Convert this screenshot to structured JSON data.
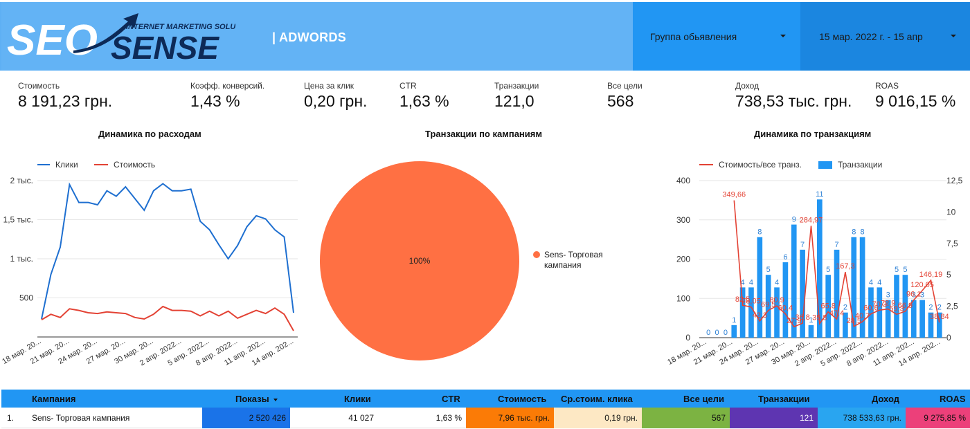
{
  "header": {
    "logo_text_seo": "SEO",
    "logo_text_sense": "SENSE",
    "logo_tagline": "INTERNET MARKETING SOLUTIONS",
    "title": "| ADWORDS",
    "filter_group_label": "Группа обьявления",
    "filter_date_label": "15 мар. 2022 г. - 15 апр"
  },
  "kpis": [
    {
      "label": "Стоимость",
      "value": "8 191,23 грн."
    },
    {
      "label": "Коэфф. конверсий.",
      "value": "1,43 %"
    },
    {
      "label": "Цена за клик",
      "value": "0,20 грн."
    },
    {
      "label": "CTR",
      "value": "1,63 %"
    },
    {
      "label": "Транзакции",
      "value": "121,0"
    },
    {
      "label": "Все цели",
      "value": "568"
    },
    {
      "label": "Доход",
      "value": "738,53 тыс. грн."
    },
    {
      "label": "ROAS",
      "value": "9 016,15 %"
    }
  ],
  "colors": {
    "blue_line": "#1e6fd0",
    "red_line": "#e34234",
    "pie": "#ff7043",
    "bar": "#2196f3"
  },
  "chart_data": [
    {
      "type": "line",
      "title": "Динамика по расходам",
      "legend_position": "top-left",
      "grid": true,
      "ylim": [
        0,
        2000
      ],
      "yticks": [
        "500",
        "1 тыс.",
        "1,5 тыс.",
        "2 тыс."
      ],
      "xtick_labels": [
        "18 мар. 20...",
        "21 мар. 20...",
        "24 мар. 20...",
        "27 мар. 20...",
        "30 мар. 20...",
        "2 апр. 2022...",
        "5 апр. 2022...",
        "8 апр. 2022...",
        "11 апр. 202...",
        "14 апр. 202..."
      ],
      "series": [
        {
          "name": "Клики",
          "values": [
            230,
            800,
            1150,
            1950,
            1720,
            1720,
            1690,
            1870,
            1800,
            1920,
            1770,
            1620,
            1870,
            1960,
            1870,
            1870,
            1890,
            1480,
            1370,
            1180,
            1000,
            1170,
            1410,
            1550,
            1510,
            1370,
            1280,
            310
          ]
        },
        {
          "name": "Стоимость",
          "values": [
            220,
            290,
            250,
            360,
            340,
            310,
            300,
            320,
            310,
            300,
            250,
            230,
            290,
            390,
            340,
            340,
            330,
            270,
            330,
            270,
            330,
            240,
            290,
            340,
            300,
            370,
            290,
            80
          ]
        }
      ]
    },
    {
      "type": "pie",
      "title": "Транзакции по кампаниям",
      "legend_position": "right",
      "slices": [
        {
          "name": "Sens- Торговая кампания",
          "percent": 100,
          "label": "100%"
        }
      ]
    },
    {
      "type": "bar",
      "title": "Динамика по транзакциям",
      "legend_position": "top-left",
      "grid": true,
      "ylim_left": [
        0,
        400
      ],
      "ylim_right": [
        0,
        12.5
      ],
      "yticks_left": [
        "0",
        "100",
        "200",
        "300",
        "400"
      ],
      "yticks_right": [
        "0",
        "2,5",
        "5",
        "7,5",
        "10",
        "12,5"
      ],
      "xtick_labels": [
        "18 мар. 20...",
        "21 мар. 20...",
        "24 мар. 20...",
        "27 мар. 20...",
        "30 мар. 20...",
        "2 апр. 2022...",
        "5 апр. 2022...",
        "8 апр. 2022...",
        "11 апр. 202...",
        "14 апр. 202..."
      ],
      "series": [
        {
          "name": "Транзакции",
          "values": [
            0,
            0,
            0,
            1,
            4,
            4,
            8,
            5,
            4,
            6,
            9,
            7,
            1,
            11,
            5,
            7,
            2,
            8,
            8,
            4,
            4,
            3,
            5,
            5,
            3,
            3,
            2,
            2
          ],
          "labels": [
            "0",
            "0",
            "0",
            "1",
            "4",
            "4",
            "8",
            "5",
            "4",
            "6",
            "9",
            "7",
            "1",
            "11",
            "5",
            "7",
            "2",
            "8",
            "8",
            "4",
            "4",
            "3",
            "5",
            "5",
            "3",
            "3",
            "2",
            "2"
          ]
        },
        {
          "name": "Стоимость/все транз.",
          "values": [
            null,
            null,
            null,
            349.66,
            82.5,
            78.05,
            42.3,
            69.5,
            80.9,
            60.4,
            27.9,
            36.8,
            284.97,
            35.8,
            65.8,
            47.4,
            167.3,
            28.5,
            40.7,
            60.6,
            70.2,
            72.9,
            59.3,
            66.9,
            96.1,
            120.05,
            146.19,
            38.84
          ],
          "labels": [
            "",
            "",
            "",
            "349,66",
            "82,5",
            "78,05",
            "42,3",
            "69,5",
            "80,9",
            "60,4",
            "27,9",
            "36,8",
            "284,97",
            "35,8",
            "65,8",
            "47,4",
            "167,3",
            "28,5",
            "40,7",
            "60,6",
            "70,2",
            "72,9",
            "59,3",
            "66,9",
            "96,1",
            "120,05",
            "146,19",
            "38,84"
          ]
        }
      ]
    }
  ],
  "table": {
    "headers": [
      "Кампания",
      "Показы",
      "Клики",
      "CTR",
      "Стоимость",
      "Ср.стоим. клика",
      "Все цели",
      "Транзакции",
      "Доход",
      "ROAS"
    ],
    "rows": [
      {
        "index": "1.",
        "cells": [
          "Sens- Торговая кампания",
          "2 520 426",
          "41 027",
          "1,63 %",
          "7,96 тыс. грн.",
          "0,19 грн.",
          "567",
          "121",
          "738 533,63 грн.",
          "9 275,85 %"
        ]
      }
    ]
  }
}
